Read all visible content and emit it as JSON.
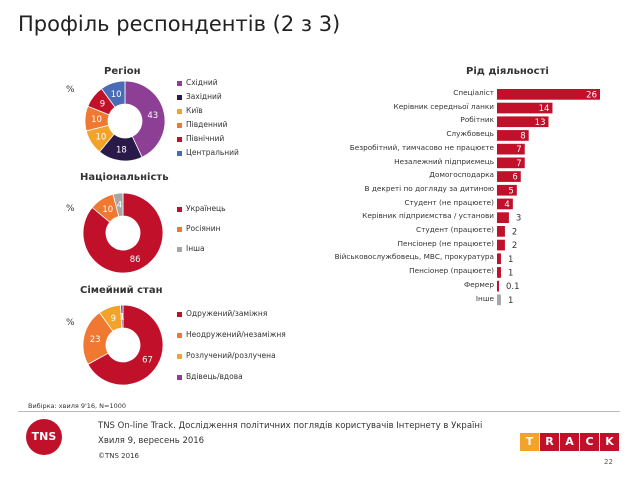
{
  "header": {
    "title": "Профіль респондентів (2 з 3)"
  },
  "region": {
    "title": "Регіон",
    "pct": "%",
    "chart_data": {
      "type": "pie",
      "title": "Регіон",
      "categories": [
        "Східний",
        "Західний",
        "Київ",
        "Південний",
        "Північний",
        "Центральний"
      ],
      "values": [
        43,
        18,
        10,
        10,
        9,
        10
      ],
      "colors": [
        "#8c3f94",
        "#2a1a4a",
        "#f4a32a",
        "#f07830",
        "#c0102a",
        "#4a6cb6"
      ]
    }
  },
  "nationality": {
    "title": "Національність",
    "pct": "%",
    "chart_data": {
      "type": "pie",
      "title": "Національність",
      "categories": [
        "Українець",
        "Росіянин",
        "Інша"
      ],
      "values": [
        86,
        10,
        4
      ],
      "colors": [
        "#c0102a",
        "#f07830",
        "#a6a6a6"
      ]
    }
  },
  "family": {
    "title": "Сімейний стан",
    "pct": "%",
    "chart_data": {
      "type": "pie",
      "title": "Сімейний стан",
      "categories": [
        "Одружений/заміжня",
        "Неодружений/незаміжня",
        "Розлучений/розлучена",
        "Вдівець/вдова"
      ],
      "values": [
        67,
        23,
        9,
        1
      ],
      "colors": [
        "#c0102a",
        "#f07830",
        "#f4a32a",
        "#8c3f94"
      ]
    }
  },
  "activity": {
    "title": "Рід діяльності",
    "chart_data": {
      "type": "bar",
      "title": "Рід діяльності",
      "categories": [
        "Спеціаліст",
        "Керівник середньої ланки",
        "Робітник",
        "Службовець",
        "Безробітний, тимчасово не працюєте",
        "Незалежний підприємець",
        "Домогосподарка",
        "В декреті по догляду за дитиною",
        "Студент (не працюєте)",
        "Керівник підприємства / установи",
        "Студент (працюєте)",
        "Пенсіонер (не працюєте)",
        "Військовослужбовець, МВС, прокуратура",
        "Пенсіонер (працюєте)",
        "Фермер",
        "Інше"
      ],
      "values": [
        26,
        14,
        13,
        8,
        7,
        7,
        6,
        5,
        4,
        3,
        2,
        2,
        1,
        1,
        0.1,
        1
      ],
      "value_labels": [
        "26",
        "14",
        "13",
        "8",
        "7",
        "7",
        "6",
        "5",
        "4",
        "3",
        "2",
        "2",
        "1",
        "1",
        "0.1",
        "1"
      ],
      "colors": [
        "#c0102a",
        "#c0102a",
        "#c0102a",
        "#c0102a",
        "#c0102a",
        "#c0102a",
        "#c0102a",
        "#c0102a",
        "#c0102a",
        "#c0102a",
        "#c0102a",
        "#c0102a",
        "#c0102a",
        "#c0102a",
        "#c0102a",
        "#a6a6a6"
      ]
    }
  },
  "sample_note": "Вибірка: хвиля 9'16, N=1000",
  "footer": {
    "line1": "TNS On-line Track. Дослідження політичних поглядів користувачів Інтернету в Україні",
    "line2": "Хвиля 9, вересень 2016",
    "copyright": "©TNS 2016",
    "logo": "TNS",
    "page": "22",
    "track_letters": [
      "T",
      "R",
      "A",
      "C",
      "K"
    ],
    "track_colors": [
      "#f4a32a",
      "#c0102a",
      "#c0102a",
      "#c0102a",
      "#c0102a"
    ],
    "logo_color": "#c0102a"
  }
}
